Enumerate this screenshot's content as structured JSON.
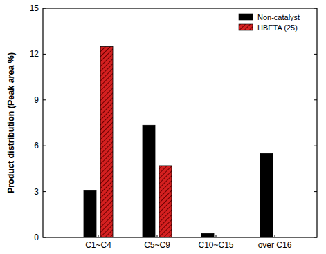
{
  "chart_data": {
    "type": "bar",
    "y_label": "Product distribution (Peak area %)",
    "categories": [
      "C1~C4",
      "C5~C9",
      "C10~C15",
      "over C16"
    ],
    "series": [
      {
        "name": "Non-catalyst",
        "color": "#000000",
        "values": [
          3.05,
          7.35,
          0.25,
          5.5
        ]
      },
      {
        "name": "HBETA (25)",
        "color": "#d42020",
        "values": [
          12.5,
          4.7,
          0,
          0
        ]
      }
    ],
    "ylim": [
      0,
      15
    ],
    "yticks": [
      0,
      3,
      6,
      9,
      12,
      15
    ],
    "grid": false,
    "legend": "upper right"
  }
}
